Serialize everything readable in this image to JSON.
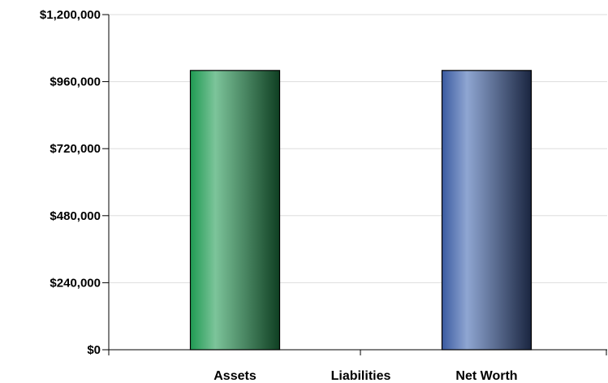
{
  "chart_data": {
    "type": "bar",
    "categories": [
      "Assets",
      "Liabilities",
      "Net Worth"
    ],
    "values": [
      1000000,
      0,
      1000000
    ],
    "ylim": [
      0,
      1200000
    ],
    "yticks": [
      0,
      240000,
      480000,
      720000,
      960000,
      1200000
    ],
    "ytick_labels": [
      "$0",
      "$240,000",
      "$480,000",
      "$720,000",
      "$960,000",
      "$1,200,000"
    ],
    "grid": true,
    "legend": "none",
    "bar_colors": [
      {
        "light": "#7cc49a",
        "mid": "#1f9a52",
        "dark": "#0f3f22"
      },
      {
        "light": "#d0d0d0",
        "mid": "#909090",
        "dark": "#404040"
      },
      {
        "light": "#8fa6d2",
        "mid": "#3a5aa0",
        "dark": "#1a2540"
      }
    ],
    "grid_color": "#dddddd",
    "axis_color": "#000000"
  }
}
